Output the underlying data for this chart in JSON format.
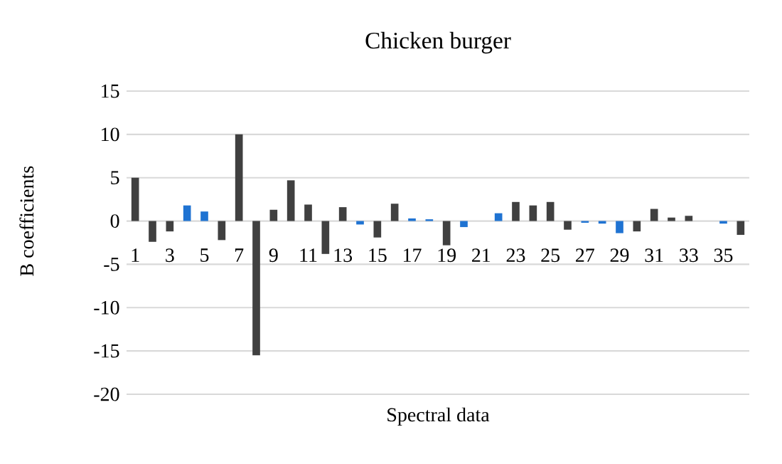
{
  "chart_data": {
    "type": "bar",
    "title": "Chicken burger",
    "xlabel": "Spectral data",
    "ylabel": "B coefficients",
    "categories": [
      "1",
      null,
      "3",
      null,
      "5",
      null,
      "7",
      null,
      "9",
      null,
      "11",
      null,
      "13",
      null,
      "15",
      null,
      "17",
      null,
      "19",
      null,
      "21",
      null,
      "23",
      null,
      "25",
      null,
      "27",
      null,
      "29",
      null,
      "31",
      null,
      "33",
      null,
      "35",
      null
    ],
    "values": [
      5.0,
      -2.4,
      -1.2,
      1.8,
      1.1,
      -2.2,
      10.0,
      -15.5,
      1.3,
      4.7,
      1.9,
      -3.8,
      1.6,
      -0.4,
      -1.9,
      2.0,
      0.3,
      0.2,
      -2.8,
      -0.7,
      0,
      0.9,
      2.2,
      1.8,
      2.2,
      -1.0,
      -0.2,
      -0.3,
      -1.4,
      -1.2,
      1.4,
      0.4,
      0.6,
      0,
      -0.3,
      -1.6
    ],
    "colors": [
      "#404040",
      "#404040",
      "#404040",
      "#1f73d2",
      "#1f73d2",
      "#404040",
      "#404040",
      "#404040",
      "#404040",
      "#404040",
      "#404040",
      "#404040",
      "#404040",
      "#1f73d2",
      "#404040",
      "#404040",
      "#1f73d2",
      "#1f73d2",
      "#404040",
      "#1f73d2",
      "#1f73d2",
      "#1f73d2",
      "#404040",
      "#404040",
      "#404040",
      "#404040",
      "#1f73d2",
      "#1f73d2",
      "#1f73d2",
      "#404040",
      "#404040",
      "#404040",
      "#404040",
      "#1f73d2",
      "#1f73d2",
      "#404040"
    ],
    "ylim": [
      -20,
      15
    ],
    "yticks": [
      -20,
      -15,
      -10,
      -5,
      0,
      5,
      10,
      15
    ],
    "grid": "y"
  }
}
